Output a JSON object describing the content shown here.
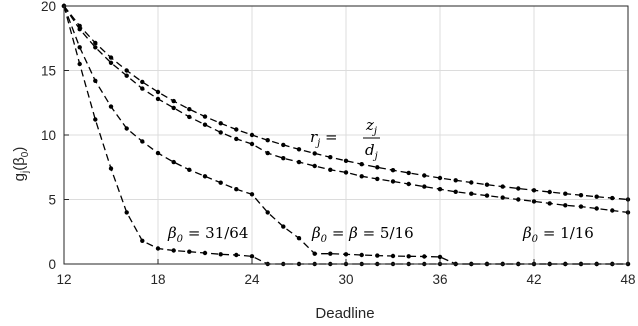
{
  "chart_data": {
    "type": "line",
    "xlabel": "Deadline",
    "ylabel": "g_j(β_0)",
    "xlim": [
      12,
      48
    ],
    "ylim": [
      0,
      20
    ],
    "xticks": [
      12,
      18,
      24,
      30,
      36,
      42,
      48
    ],
    "yticks": [
      0,
      5,
      10,
      15,
      20
    ],
    "grid": true,
    "colors": {
      "line": "#000000",
      "grid": "#dcdcdc",
      "axis": "#262626"
    },
    "series": [
      {
        "x": [
          12,
          13,
          14,
          15,
          16,
          17,
          18,
          19,
          20,
          21,
          22,
          23,
          24,
          25,
          26,
          27,
          28,
          29,
          30,
          31,
          32,
          33,
          34,
          35,
          36,
          37,
          38,
          39,
          40,
          41,
          42,
          43,
          44,
          45,
          46,
          47,
          48
        ],
        "y": [
          20,
          18.46,
          17.14,
          16.0,
          15.0,
          14.12,
          13.33,
          12.63,
          12.0,
          11.43,
          10.91,
          10.43,
          10.0,
          9.6,
          9.23,
          8.89,
          8.57,
          8.28,
          8.0,
          7.74,
          7.5,
          7.27,
          7.06,
          6.86,
          6.67,
          6.49,
          6.32,
          6.15,
          6.0,
          5.85,
          5.71,
          5.58,
          5.45,
          5.33,
          5.22,
          5.11,
          5.0
        ]
      },
      {
        "x": [
          12,
          13,
          14,
          15,
          16,
          17,
          18,
          19,
          20,
          21,
          22,
          23,
          24,
          25,
          26,
          27,
          28,
          29,
          30,
          31,
          32,
          33,
          34,
          35,
          36,
          37,
          38,
          39,
          40,
          41,
          42,
          43,
          44,
          45,
          46,
          47,
          48
        ],
        "y": [
          20,
          18.2,
          16.8,
          15.6,
          14.6,
          13.6,
          12.8,
          12.1,
          11.4,
          10.8,
          10.2,
          9.7,
          9.3,
          8.6,
          8.2,
          7.9,
          7.6,
          7.3,
          7.1,
          6.8,
          6.6,
          6.4,
          6.2,
          6.0,
          5.8,
          5.6,
          5.45,
          5.3,
          5.15,
          5.0,
          4.85,
          4.7,
          4.55,
          4.45,
          4.3,
          4.15,
          4.0
        ]
      },
      {
        "x": [
          12,
          13,
          14,
          15,
          16,
          17,
          18,
          19,
          20,
          21,
          22,
          23,
          24,
          25,
          26,
          27,
          28,
          29,
          30,
          31,
          32,
          33,
          34,
          35,
          36,
          37,
          38,
          39,
          40,
          41,
          42,
          43,
          44,
          45,
          46,
          47,
          48
        ],
        "y": [
          20,
          16.8,
          14.2,
          12.2,
          10.5,
          9.5,
          8.6,
          7.9,
          7.3,
          6.8,
          6.3,
          5.8,
          5.4,
          4.0,
          2.9,
          2.0,
          0.8,
          0.8,
          0.75,
          0.7,
          0.65,
          0.62,
          0.6,
          0.58,
          0.55,
          0,
          0,
          0,
          0,
          0,
          0,
          0,
          0,
          0,
          0,
          0,
          0
        ]
      },
      {
        "x": [
          12,
          13,
          14,
          15,
          16,
          17,
          18,
          19,
          20,
          21,
          22,
          23,
          24,
          25,
          26,
          27,
          28,
          29,
          30,
          31,
          32,
          33,
          34,
          35,
          36,
          37,
          38,
          39,
          40,
          41,
          42,
          43,
          44,
          45,
          46,
          47,
          48
        ],
        "y": [
          20,
          15.5,
          11.2,
          7.4,
          4.0,
          1.8,
          1.2,
          1.05,
          0.95,
          0.85,
          0.75,
          0.7,
          0.6,
          0,
          0,
          0,
          0,
          0,
          0,
          0,
          0,
          0,
          0,
          0,
          0,
          0,
          0,
          0,
          0,
          0,
          0,
          0,
          0,
          0,
          0,
          0,
          0
        ]
      }
    ],
    "annotations": {
      "r_label": "r_j = z_j / d_j",
      "beta_31_64": "β_0 = 31/64",
      "beta_5_16": "β_0 = β = 5/16",
      "beta_1_16": "β_0 = 1/16"
    }
  }
}
